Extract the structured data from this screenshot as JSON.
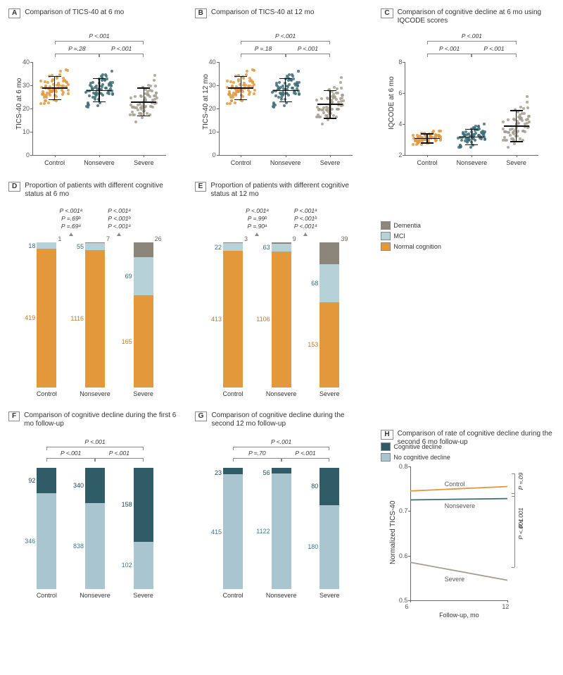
{
  "colors": {
    "orange": "#e2983b",
    "teal": "#3d6d77",
    "gray": "#a59e90",
    "lightblue": "#a9c5cf",
    "darkteal": "#2f5c66",
    "dementia": "#8c867a",
    "mci": "#b7d1d9",
    "normal": "#e2983b",
    "decline": "#2f5c66",
    "nodecline": "#a9c5cf",
    "axis": "#666666",
    "text": "#333333"
  },
  "panels": {
    "A": {
      "letter": "A",
      "title": "Comparison of TICS-40 at 6 mo",
      "ylabel": "TICS-40 at 6 mo",
      "ylim": [
        0,
        40
      ],
      "ytick_step": 10,
      "groups": [
        "Control",
        "Nonsevere",
        "Severe"
      ],
      "means": [
        29,
        28,
        23
      ],
      "sds": [
        5,
        5,
        6
      ],
      "colors": [
        "#e2983b",
        "#3d6d77",
        "#a59e90"
      ],
      "p_top": "P <.001",
      "p_left": "P =.28",
      "p_right": "P <.001"
    },
    "B": {
      "letter": "B",
      "title": "Comparison of TICS-40 at 12 mo",
      "ylabel": "TICS-40 at 12 mo",
      "ylim": [
        0,
        40
      ],
      "ytick_step": 10,
      "groups": [
        "Control",
        "Nonsevere",
        "Severe"
      ],
      "means": [
        29,
        28,
        22
      ],
      "sds": [
        5,
        5,
        6
      ],
      "colors": [
        "#e2983b",
        "#3d6d77",
        "#a59e90"
      ],
      "p_top": "P <.001",
      "p_left": "P =.18",
      "p_right": "P <.001"
    },
    "C": {
      "letter": "C",
      "title": "Comparison of cognitive decline at 6 mo using IQCODE scores",
      "ylabel": "IQCODE at 6 mo",
      "ylim": [
        2,
        8
      ],
      "ytick_step": 2,
      "groups": [
        "Control",
        "Nonsevere",
        "Severe"
      ],
      "means": [
        3.1,
        3.2,
        3.9
      ],
      "sds": [
        0.3,
        0.5,
        1.0
      ],
      "colors": [
        "#e2983b",
        "#3d6d77",
        "#a59e90"
      ],
      "p_top": "P <.001",
      "p_left": "P <.001",
      "p_right": "P <.001"
    },
    "D": {
      "letter": "D",
      "title": "Proportion of patients with different cognitive status at 6 mo",
      "groups": [
        "Control",
        "Nonsevere",
        "Severe"
      ],
      "stacks": [
        {
          "normal": 419,
          "mci": 18,
          "dementia": 1
        },
        {
          "normal": 1116,
          "mci": 55,
          "dementia": 7
        },
        {
          "normal": 165,
          "mci": 69,
          "dementia": 26
        }
      ],
      "p_lines": [
        "P <.001ᵃ",
        "P =.69ᵇ",
        "P =.69ᵃ",
        "P <.001ᵃ",
        "P <.001ᵇ",
        "P <.001ᵃ"
      ]
    },
    "E": {
      "letter": "E",
      "title": "Proportion of patients with different cognitive status at 12 mo",
      "groups": [
        "Control",
        "Nonsevere",
        "Severe"
      ],
      "stacks": [
        {
          "normal": 413,
          "mci": 22,
          "dementia": 3
        },
        {
          "normal": 1106,
          "mci": 63,
          "dementia": 9
        },
        {
          "normal": 153,
          "mci": 68,
          "dementia": 39
        }
      ],
      "p_lines": [
        "P <.001ᵃ",
        "P =.99ᵇ",
        "P =.90ᵃ",
        "P <.001ᵃ",
        "P <.001ᵇ",
        "P <.001ᵃ"
      ]
    },
    "legendDE": [
      {
        "label": "Dementia",
        "color": "#8c867a"
      },
      {
        "label": "MCI",
        "color": "#b7d1d9"
      },
      {
        "label": "Normal cognition",
        "color": "#e2983b"
      }
    ],
    "F": {
      "letter": "F",
      "title": "Comparison of cognitive decline during the first 6 mo follow-up",
      "groups": [
        "Control",
        "Nonsevere",
        "Severe"
      ],
      "stacks": [
        {
          "decline": 92,
          "nodecline": 346
        },
        {
          "decline": 340,
          "nodecline": 838
        },
        {
          "decline": 158,
          "nodecline": 102
        }
      ],
      "p_top": "P <.001",
      "p_left": "P <.001",
      "p_right": "P <.001"
    },
    "G": {
      "letter": "G",
      "title": "Comparison of cognitive decline during the second 12 mo follow-up",
      "groups": [
        "Control",
        "Nonsevere",
        "Severe"
      ],
      "stacks": [
        {
          "decline": 23,
          "nodecline": 415
        },
        {
          "decline": 56,
          "nodecline": 1122
        },
        {
          "decline": 80,
          "nodecline": 180
        }
      ],
      "p_top": "P <.001",
      "p_left": "P =.70",
      "p_right": "P <.001"
    },
    "legendFG": [
      {
        "label": "Cognitive decline",
        "color": "#2f5c66"
      },
      {
        "label": "No cognitive decline",
        "color": "#a9c5cf"
      }
    ],
    "H": {
      "letter": "H",
      "title": "Comparison of rate of cognitive decline during the second 6 mo follow-up",
      "ylabel": "Normalized TICS-40",
      "xlabel": "Follow-up, mo",
      "ylim": [
        0.5,
        0.8
      ],
      "yticks": [
        0.5,
        0.6,
        0.7,
        0.8
      ],
      "xticks": [
        6,
        12
      ],
      "series": [
        {
          "name": "Control",
          "color": "#e2983b",
          "y": [
            0.745,
            0.755
          ]
        },
        {
          "name": "Nonsevere",
          "color": "#3d6d77",
          "y": [
            0.725,
            0.728
          ]
        },
        {
          "name": "Severe",
          "color": "#a59e90",
          "y": [
            0.585,
            0.545
          ]
        }
      ],
      "p_right_top": "P =.09",
      "p_right_mid": "P <.001",
      "p_right_bot": "P <.001"
    }
  }
}
